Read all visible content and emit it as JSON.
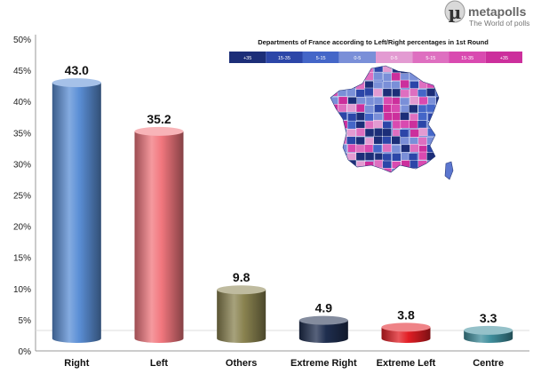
{
  "brand": {
    "symbol": "µ",
    "name": "metapolls",
    "tagline": "The World of polls"
  },
  "inset_map": {
    "title": "Departments of France according to Left/Right percentages in 1st Round",
    "legend": [
      "+35",
      "15-35",
      "5-15",
      "0-5",
      "0-5",
      "5-15",
      "15-35",
      "+35"
    ],
    "legend_colors": [
      "#1c2e78",
      "#2c46a8",
      "#4466c8",
      "#7a8fd8",
      "#e39bd2",
      "#de6fc0",
      "#d94ab0",
      "#cc2f9c"
    ]
  },
  "chart_data": {
    "type": "bar",
    "categories": [
      "Right",
      "Left",
      "Others",
      "Extreme Right",
      "Extreme Left",
      "Centre"
    ],
    "values": [
      43.0,
      35.2,
      9.8,
      4.9,
      3.8,
      3.3
    ],
    "data_labels": [
      "43.0",
      "35.2",
      "9.8",
      "4.9",
      "3.8",
      "3.3"
    ],
    "colors": [
      "#5b8fd6",
      "#f2777e",
      "#8a8350",
      "#1f2e4f",
      "#e21d24",
      "#3f8e9c"
    ],
    "y_ticks": [
      "0%",
      "5%",
      "10%",
      "15%",
      "20%",
      "25%",
      "30%",
      "35%",
      "40%",
      "45%",
      "50%"
    ],
    "ylim": [
      0,
      50
    ],
    "grid": false,
    "title": "",
    "xlabel": "",
    "ylabel": ""
  }
}
